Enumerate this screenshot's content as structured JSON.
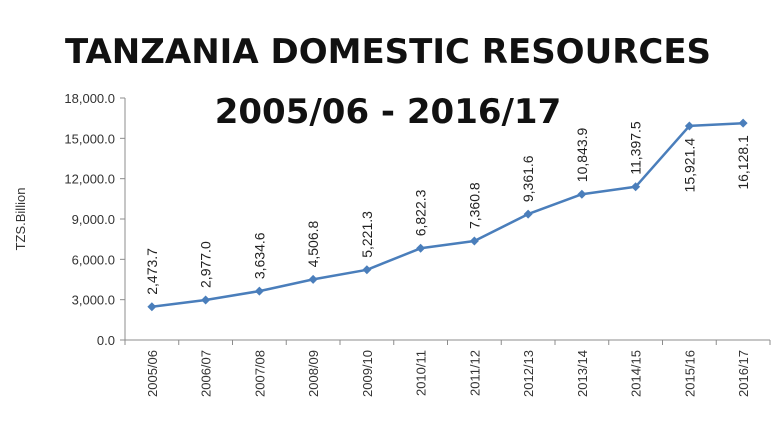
{
  "chart_data": {
    "type": "line",
    "title": "TANZANIA DOMESTIC RESOURCES",
    "subtitle": "2005/06 - 2016/17",
    "ylabel": "TZS.Billion",
    "xlabel": "",
    "categories": [
      "2005/06",
      "2006/07",
      "2007/08",
      "2008/09",
      "2009/10",
      "2010/11",
      "2011/12",
      "2012/13",
      "2013/14",
      "2014/15",
      "2015/16",
      "2016/17"
    ],
    "series": [
      {
        "values": [
          2473.7,
          2977.0,
          3634.6,
          4506.8,
          5221.3,
          6822.3,
          7360.8,
          9361.6,
          10843.9,
          11397.5,
          15921.4,
          16128.1
        ],
        "value_labels": [
          "2,473.7",
          "2,977.0",
          "3,634.6",
          "4,506.8",
          "5,221.3",
          "6,822.3",
          "7,360.8",
          "9,361.6",
          "10,843.9",
          "11,397.5",
          "15,921.4",
          "16,128.1"
        ],
        "color": "#4a7ebb"
      }
    ],
    "ylim": [
      0,
      18000
    ],
    "yticks": [
      0,
      3000,
      6000,
      9000,
      12000,
      15000,
      18000
    ],
    "ytick_labels": [
      "0.0",
      "3,000.0",
      "6,000.0",
      "9,000.0",
      "12,000.0",
      "15,000.0",
      "18,000.0"
    ],
    "grid": false,
    "legend": "none"
  }
}
